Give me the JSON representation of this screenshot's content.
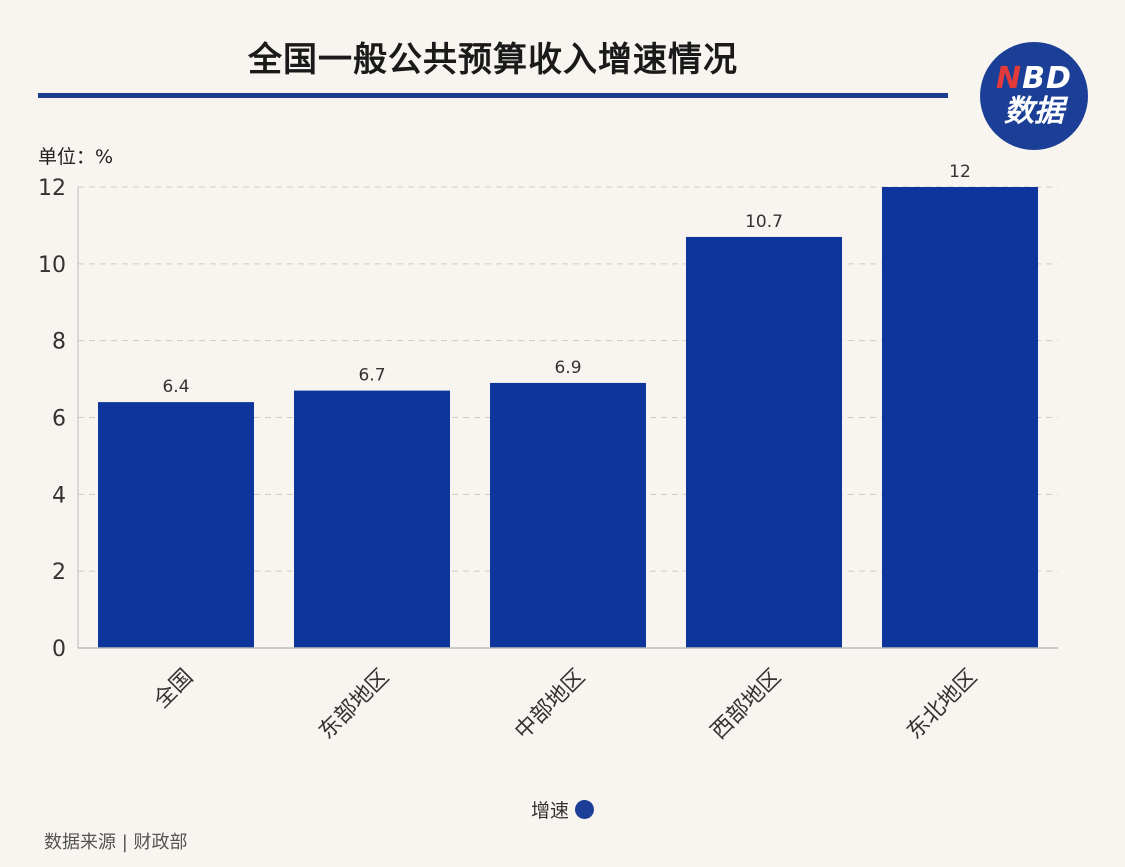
{
  "title": "全国一般公共预算收入增速情况",
  "logo": {
    "line1_n": "N",
    "line1_rest": "BD",
    "line2": "数据"
  },
  "unit_label": "单位：%",
  "legend_label": "增速",
  "source": "数据来源 | 财政部",
  "colors": {
    "bar": "#0e359c",
    "accent": "#1a3d8f",
    "background": "#f8f5f0"
  },
  "chart_data": {
    "type": "bar",
    "title": "全国一般公共预算收入增速情况",
    "categories": [
      "全国",
      "东部地区",
      "中部地区",
      "西部地区",
      "东北地区"
    ],
    "series": [
      {
        "name": "增速",
        "values": [
          6.4,
          6.7,
          6.9,
          10.7,
          12
        ]
      }
    ],
    "value_labels": [
      "6.4",
      "6.7",
      "6.9",
      "10.7",
      "12"
    ],
    "ylabel": "单位：%",
    "ylim": [
      0,
      12
    ],
    "yticks": [
      0,
      2,
      4,
      6,
      8,
      10,
      12
    ],
    "grid": true,
    "legend": "bottom-center"
  }
}
